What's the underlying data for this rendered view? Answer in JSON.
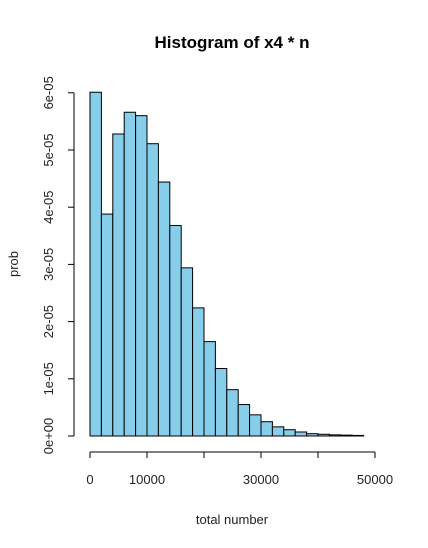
{
  "chart_data": {
    "type": "bar",
    "title": "Histogram of x4 * n",
    "xlabel": "total number",
    "ylabel": "prob",
    "bar_color": "#87ceeb",
    "xlim": [
      0,
      52000
    ],
    "ylim": [
      0,
      6e-05
    ],
    "bin_width": 2000,
    "bins_start": [
      0,
      2000,
      4000,
      6000,
      8000,
      10000,
      12000,
      14000,
      16000,
      18000,
      20000,
      22000,
      24000,
      26000,
      28000,
      30000,
      32000,
      34000,
      36000,
      38000,
      40000,
      42000,
      44000,
      46000
    ],
    "values": [
      6.01e-05,
      3.88e-05,
      5.28e-05,
      5.66e-05,
      5.6e-05,
      5.11e-05,
      4.44e-05,
      3.68e-05,
      2.94e-05,
      2.24e-05,
      1.65e-05,
      1.18e-05,
      8.1e-06,
      5.5e-06,
      3.7e-06,
      2.5e-06,
      1.6e-06,
      1.1e-06,
      7e-07,
      4e-07,
      3e-07,
      2e-07,
      1.5e-07,
      1e-07
    ],
    "x_ticks": [
      0,
      10000,
      20000,
      30000,
      40000,
      50000
    ],
    "x_tick_labels": [
      "0",
      "10000",
      "",
      "30000",
      "",
      "50000"
    ],
    "y_ticks": [
      0,
      1e-05,
      2e-05,
      3e-05,
      4e-05,
      5e-05,
      6e-05
    ],
    "y_tick_labels": [
      "0e+00",
      "1e-05",
      "2e-05",
      "3e-05",
      "4e-05",
      "5e-05",
      "6e-05"
    ]
  }
}
